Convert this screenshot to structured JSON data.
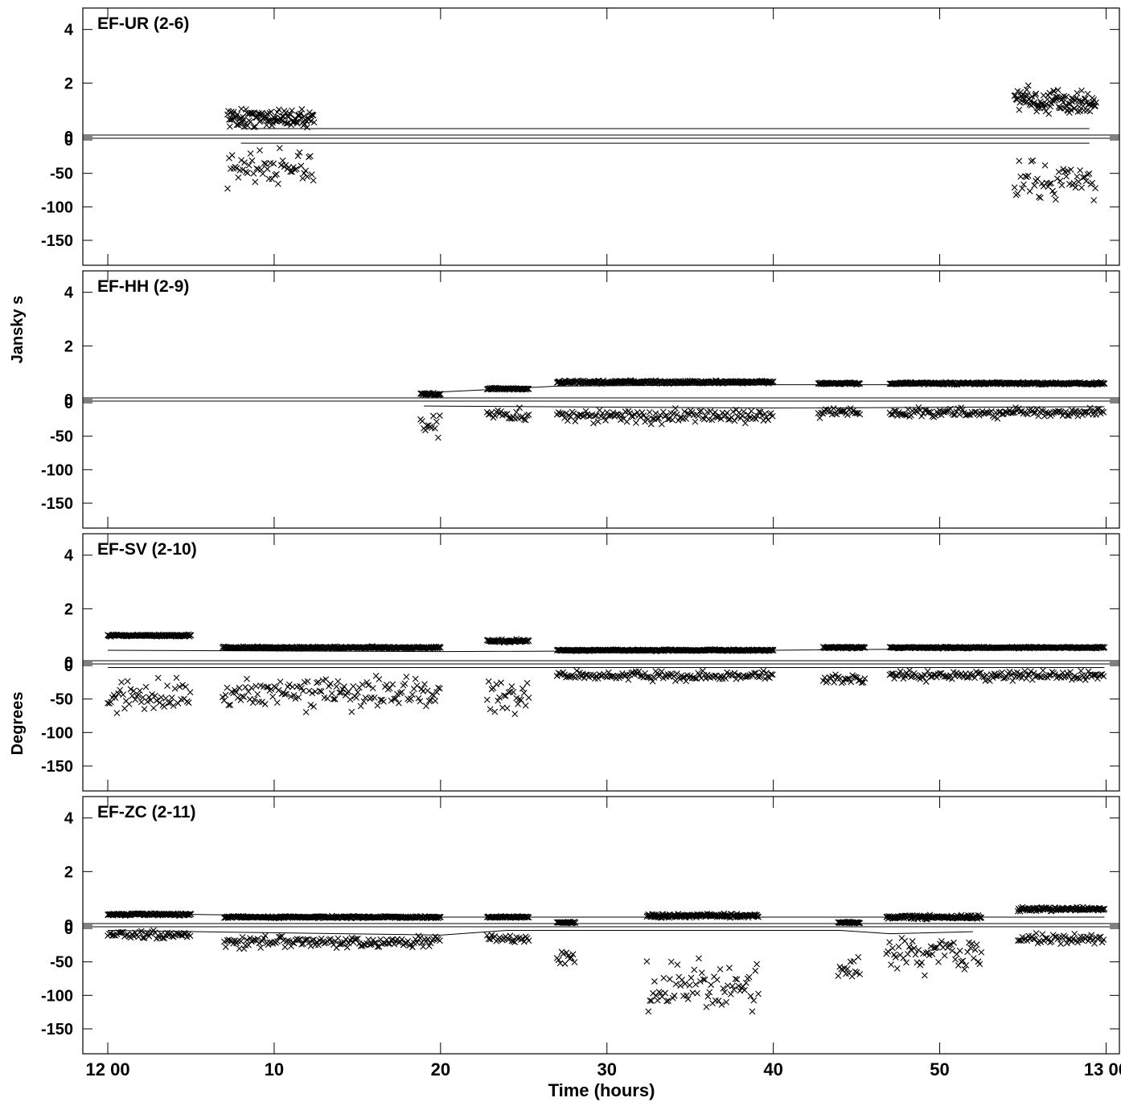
{
  "x_axis": {
    "label": "Time (hours)",
    "tick_labels": [
      "12 00",
      "10",
      "20",
      "30",
      "40",
      "50",
      "13 00"
    ],
    "tick_values": [
      0,
      10,
      20,
      30,
      40,
      50,
      60
    ],
    "range": [
      -1.5,
      60.8
    ]
  },
  "y_labels": {
    "amplitude": "Jansky s",
    "phase": "Degrees"
  },
  "amp_ticks": [
    "4",
    "2",
    "0"
  ],
  "phase_ticks": [
    "0",
    "-50",
    "-100",
    "-150"
  ],
  "chart_data": [
    {
      "type": "scatter",
      "baseline": "EF-UR (2-6)",
      "amp_ylim": [
        0,
        4.5
      ],
      "phase_ylim": [
        -180,
        0
      ],
      "segments": [
        {
          "start": 7.2,
          "end": 12.4,
          "amp_level": 0.7,
          "amp_spread": 0.5,
          "phase_level": -40,
          "phase_spread": 35
        },
        {
          "start": 54.5,
          "end": 59.4,
          "amp_level": 1.3,
          "amp_spread": 0.7,
          "phase_level": -60,
          "phase_spread": 45
        }
      ],
      "amp_model": [
        [
          8,
          0.3
        ],
        [
          59,
          0.3
        ]
      ],
      "phase_model": [
        [
          8,
          -5
        ],
        [
          59,
          -5
        ]
      ]
    },
    {
      "type": "scatter",
      "baseline": "EF-HH (2-9)",
      "amp_ylim": [
        0,
        4.5
      ],
      "phase_ylim": [
        -180,
        0
      ],
      "segments": [
        {
          "start": 18.8,
          "end": 20.0,
          "amp_level": 0.2,
          "amp_spread": 0.05,
          "phase_level": -40,
          "phase_spread": 25
        },
        {
          "start": 22.8,
          "end": 25.3,
          "amp_level": 0.4,
          "amp_spread": 0.05,
          "phase_level": -20,
          "phase_spread": 15
        },
        {
          "start": 27.0,
          "end": 40.0,
          "amp_level": 0.65,
          "amp_spread": 0.08,
          "phase_level": -20,
          "phase_spread": 15
        },
        {
          "start": 42.7,
          "end": 45.2,
          "amp_level": 0.6,
          "amp_spread": 0.05,
          "phase_level": -15,
          "phase_spread": 10
        },
        {
          "start": 47.0,
          "end": 59.9,
          "amp_level": 0.6,
          "amp_spread": 0.06,
          "phase_level": -15,
          "phase_spread": 10
        }
      ],
      "amp_model": [
        [
          19,
          0.25
        ],
        [
          24,
          0.4
        ],
        [
          27,
          0.5
        ],
        [
          40,
          0.55
        ],
        [
          59.9,
          0.55
        ]
      ],
      "phase_model": [
        [
          19,
          -5
        ],
        [
          40,
          -8
        ],
        [
          59.9,
          -6
        ]
      ]
    },
    {
      "type": "scatter",
      "baseline": "EF-SV (2-10)",
      "amp_ylim": [
        0,
        4.5
      ],
      "phase_ylim": [
        -180,
        0
      ],
      "segments": [
        {
          "start": 0,
          "end": 5.0,
          "amp_level": 1.0,
          "amp_spread": 0.05,
          "phase_level": -45,
          "phase_spread": 35
        },
        {
          "start": 6.9,
          "end": 20.0,
          "amp_level": 0.55,
          "amp_spread": 0.05,
          "phase_level": -40,
          "phase_spread": 35
        },
        {
          "start": 22.8,
          "end": 25.3,
          "amp_level": 0.8,
          "amp_spread": 0.08,
          "phase_level": -45,
          "phase_spread": 35
        },
        {
          "start": 27.0,
          "end": 40.0,
          "amp_level": 0.45,
          "amp_spread": 0.04,
          "phase_level": -15,
          "phase_spread": 10
        },
        {
          "start": 43.0,
          "end": 45.5,
          "amp_level": 0.55,
          "amp_spread": 0.04,
          "phase_level": -20,
          "phase_spread": 10
        },
        {
          "start": 47.0,
          "end": 59.9,
          "amp_level": 0.55,
          "amp_spread": 0.04,
          "phase_level": -15,
          "phase_spread": 10
        }
      ],
      "amp_model": [
        [
          0,
          0.45
        ],
        [
          20,
          0.4
        ],
        [
          40,
          0.45
        ],
        [
          59.9,
          0.55
        ]
      ],
      "phase_model": [
        [
          0,
          -3
        ],
        [
          59.9,
          -3
        ]
      ]
    },
    {
      "type": "scatter",
      "baseline": "EF-ZC (2-11)",
      "amp_ylim": [
        0,
        4.5
      ],
      "phase_ylim": [
        -180,
        0
      ],
      "segments": [
        {
          "start": 0,
          "end": 5.0,
          "amp_level": 0.4,
          "amp_spread": 0.06,
          "phase_level": -10,
          "phase_spread": 8
        },
        {
          "start": 7.0,
          "end": 20.0,
          "amp_level": 0.3,
          "amp_spread": 0.05,
          "phase_level": -20,
          "phase_spread": 12
        },
        {
          "start": 22.8,
          "end": 25.3,
          "amp_level": 0.3,
          "amp_spread": 0.05,
          "phase_level": -15,
          "phase_spread": 8
        },
        {
          "start": 27.0,
          "end": 28.1,
          "amp_level": 0.1,
          "amp_spread": 0.03,
          "phase_level": -40,
          "phase_spread": 20
        },
        {
          "start": 32.4,
          "end": 39.1,
          "amp_level": 0.35,
          "amp_spread": 0.1,
          "phase_level": -90,
          "phase_spread": 60
        },
        {
          "start": 43.9,
          "end": 45.2,
          "amp_level": 0.1,
          "amp_spread": 0.03,
          "phase_level": -60,
          "phase_spread": 30
        },
        {
          "start": 46.8,
          "end": 52.5,
          "amp_level": 0.3,
          "amp_spread": 0.1,
          "phase_level": -40,
          "phase_spread": 40
        },
        {
          "start": 54.7,
          "end": 59.9,
          "amp_level": 0.6,
          "amp_spread": 0.12,
          "phase_level": -15,
          "phase_spread": 10
        }
      ],
      "amp_model": [
        [
          0,
          0.4
        ],
        [
          5,
          0.4
        ],
        [
          20,
          0.3
        ],
        [
          40,
          0.3
        ],
        [
          59.9,
          0.3
        ]
      ],
      "phase_model": [
        [
          0,
          -3
        ],
        [
          20,
          -10
        ],
        [
          24,
          -3
        ],
        [
          44,
          -3
        ],
        [
          47,
          -8
        ],
        [
          52,
          -5
        ]
      ]
    }
  ]
}
